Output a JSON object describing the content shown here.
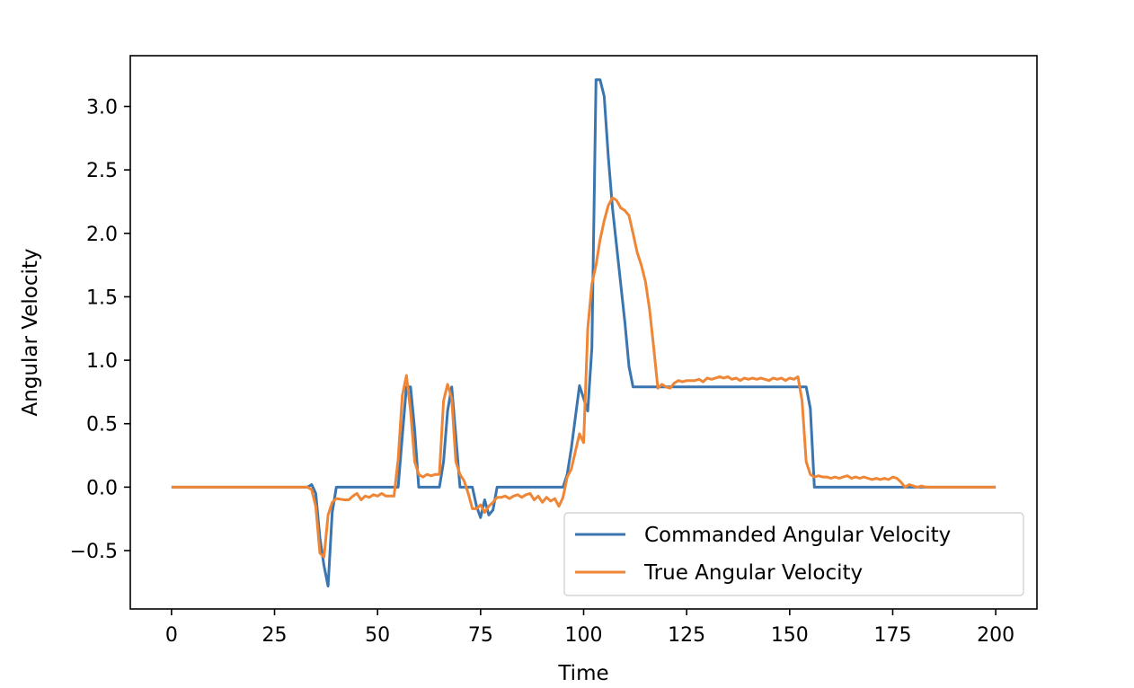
{
  "chart_data": {
    "type": "line",
    "title": "",
    "xlabel": "Time",
    "ylabel": "Angular Velocity",
    "xlim": [
      -10,
      210
    ],
    "ylim": [
      -0.96,
      3.4
    ],
    "xticks": [
      0,
      25,
      50,
      75,
      100,
      125,
      150,
      175,
      200
    ],
    "xtick_labels": [
      "0",
      "25",
      "50",
      "75",
      "100",
      "125",
      "150",
      "175",
      "200"
    ],
    "yticks": [
      -0.5,
      0.0,
      0.5,
      1.0,
      1.5,
      2.0,
      2.5,
      3.0
    ],
    "ytick_labels": [
      "−0.5",
      "0.0",
      "0.5",
      "1.0",
      "1.5",
      "2.0",
      "2.5",
      "3.0"
    ],
    "grid": false,
    "legend_position": "lower-right",
    "series": [
      {
        "name": "Commanded Angular Velocity",
        "color": "#3b75af",
        "points": [
          [
            0,
            0
          ],
          [
            20,
            0
          ],
          [
            33,
            0
          ],
          [
            34,
            0.02
          ],
          [
            35,
            -0.05
          ],
          [
            36,
            -0.4
          ],
          [
            37,
            -0.62
          ],
          [
            38,
            -0.78
          ],
          [
            39,
            -0.2
          ],
          [
            40,
            0
          ],
          [
            45,
            0
          ],
          [
            55,
            0
          ],
          [
            56,
            0.4
          ],
          [
            57,
            0.79
          ],
          [
            58,
            0.79
          ],
          [
            59,
            0.45
          ],
          [
            60,
            0
          ],
          [
            65,
            0
          ],
          [
            66,
            0.2
          ],
          [
            67,
            0.6
          ],
          [
            68,
            0.79
          ],
          [
            69,
            0.4
          ],
          [
            70,
            0
          ],
          [
            73,
            0
          ],
          [
            74,
            -0.15
          ],
          [
            75,
            -0.24
          ],
          [
            76,
            -0.1
          ],
          [
            77,
            -0.22
          ],
          [
            78,
            -0.18
          ],
          [
            79,
            0
          ],
          [
            85,
            0
          ],
          [
            90,
            0
          ],
          [
            95,
            0
          ],
          [
            96,
            0.1
          ],
          [
            97,
            0.3
          ],
          [
            98,
            0.55
          ],
          [
            99,
            0.8
          ],
          [
            100,
            0.7
          ],
          [
            101,
            0.6
          ],
          [
            102,
            1.1
          ],
          [
            103,
            3.21
          ],
          [
            104,
            3.21
          ],
          [
            105,
            3.08
          ],
          [
            106,
            2.6
          ],
          [
            107,
            2.2
          ],
          [
            108,
            1.9
          ],
          [
            109,
            1.6
          ],
          [
            110,
            1.3
          ],
          [
            111,
            0.95
          ],
          [
            112,
            0.79
          ],
          [
            115,
            0.79
          ],
          [
            125,
            0.79
          ],
          [
            150,
            0.79
          ],
          [
            154,
            0.79
          ],
          [
            155,
            0.62
          ],
          [
            156,
            0
          ],
          [
            165,
            0
          ],
          [
            180,
            0
          ],
          [
            200,
            0
          ]
        ]
      },
      {
        "name": "True Angular Velocity",
        "color": "#ef8636",
        "points": [
          [
            0,
            0
          ],
          [
            20,
            0
          ],
          [
            33,
            0
          ],
          [
            34,
            -0.02
          ],
          [
            35,
            -0.15
          ],
          [
            36,
            -0.52
          ],
          [
            37,
            -0.55
          ],
          [
            38,
            -0.22
          ],
          [
            39,
            -0.12
          ],
          [
            40,
            -0.09
          ],
          [
            42,
            -0.1
          ],
          [
            43,
            -0.1
          ],
          [
            44,
            -0.07
          ],
          [
            45,
            -0.05
          ],
          [
            46,
            -0.1
          ],
          [
            47,
            -0.07
          ],
          [
            48,
            -0.08
          ],
          [
            49,
            -0.06
          ],
          [
            50,
            -0.07
          ],
          [
            51,
            -0.05
          ],
          [
            52,
            -0.07
          ],
          [
            53,
            -0.07
          ],
          [
            54,
            -0.07
          ],
          [
            55,
            0.22
          ],
          [
            56,
            0.72
          ],
          [
            57,
            0.88
          ],
          [
            58,
            0.6
          ],
          [
            59,
            0.2
          ],
          [
            60,
            0.1
          ],
          [
            61,
            0.08
          ],
          [
            62,
            0.1
          ],
          [
            63,
            0.09
          ],
          [
            64,
            0.1
          ],
          [
            65,
            0.1
          ],
          [
            66,
            0.68
          ],
          [
            67,
            0.81
          ],
          [
            68,
            0.7
          ],
          [
            69,
            0.2
          ],
          [
            70,
            0.1
          ],
          [
            71,
            0.05
          ],
          [
            72,
            -0.05
          ],
          [
            73,
            -0.17
          ],
          [
            74,
            -0.17
          ],
          [
            75,
            -0.14
          ],
          [
            76,
            -0.2
          ],
          [
            77,
            -0.15
          ],
          [
            78,
            -0.12
          ],
          [
            79,
            -0.08
          ],
          [
            80,
            -0.08
          ],
          [
            81,
            -0.07
          ],
          [
            82,
            -0.09
          ],
          [
            83,
            -0.07
          ],
          [
            84,
            -0.06
          ],
          [
            85,
            -0.08
          ],
          [
            86,
            -0.06
          ],
          [
            87,
            -0.05
          ],
          [
            88,
            -0.1
          ],
          [
            89,
            -0.07
          ],
          [
            90,
            -0.12
          ],
          [
            91,
            -0.08
          ],
          [
            92,
            -0.11
          ],
          [
            93,
            -0.09
          ],
          [
            94,
            -0.15
          ],
          [
            95,
            -0.08
          ],
          [
            96,
            0.08
          ],
          [
            97,
            0.14
          ],
          [
            98,
            0.28
          ],
          [
            99,
            0.42
          ],
          [
            100,
            0.35
          ],
          [
            101,
            1.25
          ],
          [
            102,
            1.6
          ],
          [
            103,
            1.75
          ],
          [
            104,
            1.95
          ],
          [
            105,
            2.1
          ],
          [
            106,
            2.22
          ],
          [
            107,
            2.28
          ],
          [
            108,
            2.26
          ],
          [
            109,
            2.2
          ],
          [
            110,
            2.18
          ],
          [
            111,
            2.14
          ],
          [
            112,
            2.0
          ],
          [
            113,
            1.85
          ],
          [
            114,
            1.75
          ],
          [
            115,
            1.62
          ],
          [
            116,
            1.4
          ],
          [
            117,
            1.1
          ],
          [
            118,
            0.78
          ],
          [
            119,
            0.81
          ],
          [
            120,
            0.79
          ],
          [
            121,
            0.78
          ],
          [
            122,
            0.82
          ],
          [
            123,
            0.84
          ],
          [
            124,
            0.83
          ],
          [
            125,
            0.84
          ],
          [
            127,
            0.84
          ],
          [
            128,
            0.85
          ],
          [
            129,
            0.83
          ],
          [
            130,
            0.86
          ],
          [
            131,
            0.85
          ],
          [
            132,
            0.86
          ],
          [
            133,
            0.87
          ],
          [
            134,
            0.86
          ],
          [
            135,
            0.87
          ],
          [
            136,
            0.85
          ],
          [
            137,
            0.86
          ],
          [
            138,
            0.84
          ],
          [
            139,
            0.86
          ],
          [
            140,
            0.85
          ],
          [
            141,
            0.86
          ],
          [
            142,
            0.85
          ],
          [
            143,
            0.86
          ],
          [
            144,
            0.85
          ],
          [
            145,
            0.84
          ],
          [
            146,
            0.86
          ],
          [
            147,
            0.85
          ],
          [
            148,
            0.86
          ],
          [
            149,
            0.84
          ],
          [
            150,
            0.86
          ],
          [
            151,
            0.85
          ],
          [
            152,
            0.87
          ],
          [
            153,
            0.68
          ],
          [
            154,
            0.2
          ],
          [
            155,
            0.1
          ],
          [
            156,
            0.08
          ],
          [
            157,
            0.09
          ],
          [
            158,
            0.08
          ],
          [
            159,
            0.08
          ],
          [
            160,
            0.07
          ],
          [
            161,
            0.08
          ],
          [
            162,
            0.07
          ],
          [
            163,
            0.08
          ],
          [
            164,
            0.09
          ],
          [
            165,
            0.07
          ],
          [
            166,
            0.08
          ],
          [
            167,
            0.07
          ],
          [
            168,
            0.08
          ],
          [
            169,
            0.07
          ],
          [
            170,
            0.06
          ],
          [
            171,
            0.07
          ],
          [
            172,
            0.06
          ],
          [
            173,
            0.07
          ],
          [
            174,
            0.06
          ],
          [
            175,
            0.08
          ],
          [
            176,
            0.07
          ],
          [
            177,
            0.04
          ],
          [
            178,
            0.0
          ],
          [
            179,
            0.02
          ],
          [
            180,
            0.01
          ],
          [
            181,
            0.0
          ],
          [
            182,
            0.01
          ],
          [
            183,
            0.0
          ],
          [
            185,
            0.0
          ],
          [
            200,
            0
          ]
        ]
      }
    ]
  }
}
